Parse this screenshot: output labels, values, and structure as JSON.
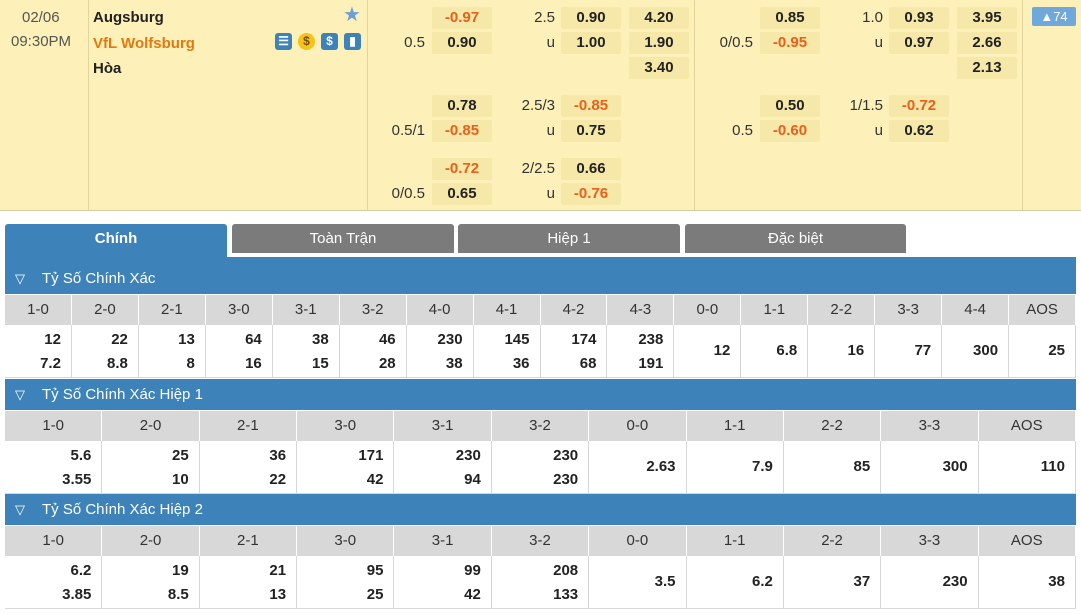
{
  "match": {
    "date": "02/06",
    "time": "09:30PM",
    "home_team": "Augsburg",
    "away_team": "VfL Wolfsburg",
    "draw_label": "Hòa",
    "more_count": "▲74",
    "icons": [
      "stats-icon",
      "coin-icon",
      "dollar-icon",
      "chart-icon"
    ],
    "full_time": {
      "rows": [
        {
          "handicap_home": "-0.97",
          "handicap_line": "",
          "ou_label": "2.5",
          "ou_over": "0.90",
          "x12": "4.20"
        },
        {
          "handicap_line": "0.5",
          "handicap_home": "0.90",
          "ou_label": "u",
          "ou_over": "1.00",
          "x12": "1.90"
        },
        {
          "x12": "3.40"
        },
        {
          "handicap_home": "0.78",
          "ou_label": "2.5/3",
          "ou_over": "-0.85"
        },
        {
          "handicap_line": "0.5/1",
          "handicap_home": "-0.85",
          "ou_label": "u",
          "ou_over": "0.75"
        },
        {
          "handicap_home": "-0.72",
          "ou_label": "2/2.5",
          "ou_over": "0.66"
        },
        {
          "handicap_line": "0/0.5",
          "handicap_home": "0.65",
          "ou_label": "u",
          "ou_over": "-0.76"
        }
      ]
    },
    "first_half": {
      "rows": [
        {
          "handicap_home": "0.85",
          "ou_label": "1.0",
          "ou_over": "0.93",
          "x12": "3.95"
        },
        {
          "handicap_line": "0/0.5",
          "handicap_home": "-0.95",
          "ou_label": "u",
          "ou_over": "0.97",
          "x12": "2.66"
        },
        {
          "x12": "2.13"
        },
        {
          "handicap_home": "0.50",
          "ou_label": "1/1.5",
          "ou_over": "-0.72"
        },
        {
          "handicap_line": "0.5",
          "handicap_home": "-0.60",
          "ou_label": "u",
          "ou_over": "0.62"
        }
      ]
    }
  },
  "tabs": [
    "Chính",
    "Toàn Trận",
    "Hiệp 1",
    "Đặc biệt"
  ],
  "sections": [
    {
      "title": "Tỷ Số Chính Xác",
      "headers": [
        "1-0",
        "2-0",
        "2-1",
        "3-0",
        "3-1",
        "3-2",
        "4-0",
        "4-1",
        "4-2",
        "4-3",
        "0-0",
        "1-1",
        "2-2",
        "3-3",
        "4-4",
        "AOS"
      ],
      "values": [
        [
          "12",
          "7.2"
        ],
        [
          "22",
          "8.8"
        ],
        [
          "13",
          "8"
        ],
        [
          "64",
          "16"
        ],
        [
          "38",
          "15"
        ],
        [
          "46",
          "28"
        ],
        [
          "230",
          "38"
        ],
        [
          "145",
          "36"
        ],
        [
          "174",
          "68"
        ],
        [
          "238",
          "191"
        ],
        [
          "12"
        ],
        [
          "6.8"
        ],
        [
          "16"
        ],
        [
          "77"
        ],
        [
          "300"
        ],
        [
          "25"
        ]
      ]
    },
    {
      "title": "Tỷ Số Chính Xác Hiệp 1",
      "headers": [
        "1-0",
        "2-0",
        "2-1",
        "3-0",
        "3-1",
        "3-2",
        "0-0",
        "1-1",
        "2-2",
        "3-3",
        "AOS"
      ],
      "values": [
        [
          "5.6",
          "3.55"
        ],
        [
          "25",
          "10"
        ],
        [
          "36",
          "22"
        ],
        [
          "171",
          "42"
        ],
        [
          "230",
          "94"
        ],
        [
          "230",
          "230"
        ],
        [
          "2.63"
        ],
        [
          "7.9"
        ],
        [
          "85"
        ],
        [
          "300"
        ],
        [
          "110"
        ]
      ]
    },
    {
      "title": "Tỷ Số Chính Xác Hiệp 2",
      "headers": [
        "1-0",
        "2-0",
        "2-1",
        "3-0",
        "3-1",
        "3-2",
        "0-0",
        "1-1",
        "2-2",
        "3-3",
        "AOS"
      ],
      "values": [
        [
          "6.2",
          "3.85"
        ],
        [
          "19",
          "8.5"
        ],
        [
          "21",
          "13"
        ],
        [
          "95",
          "25"
        ],
        [
          "99",
          "42"
        ],
        [
          "208",
          "133"
        ],
        [
          "3.5"
        ],
        [
          "6.2"
        ],
        [
          "37"
        ],
        [
          "230"
        ],
        [
          "38"
        ]
      ]
    }
  ],
  "colors": {
    "header_bg": "#fdf0b8",
    "accent": "#3d82b8",
    "negative": "#e8601c",
    "away_team": "#e07a10"
  }
}
